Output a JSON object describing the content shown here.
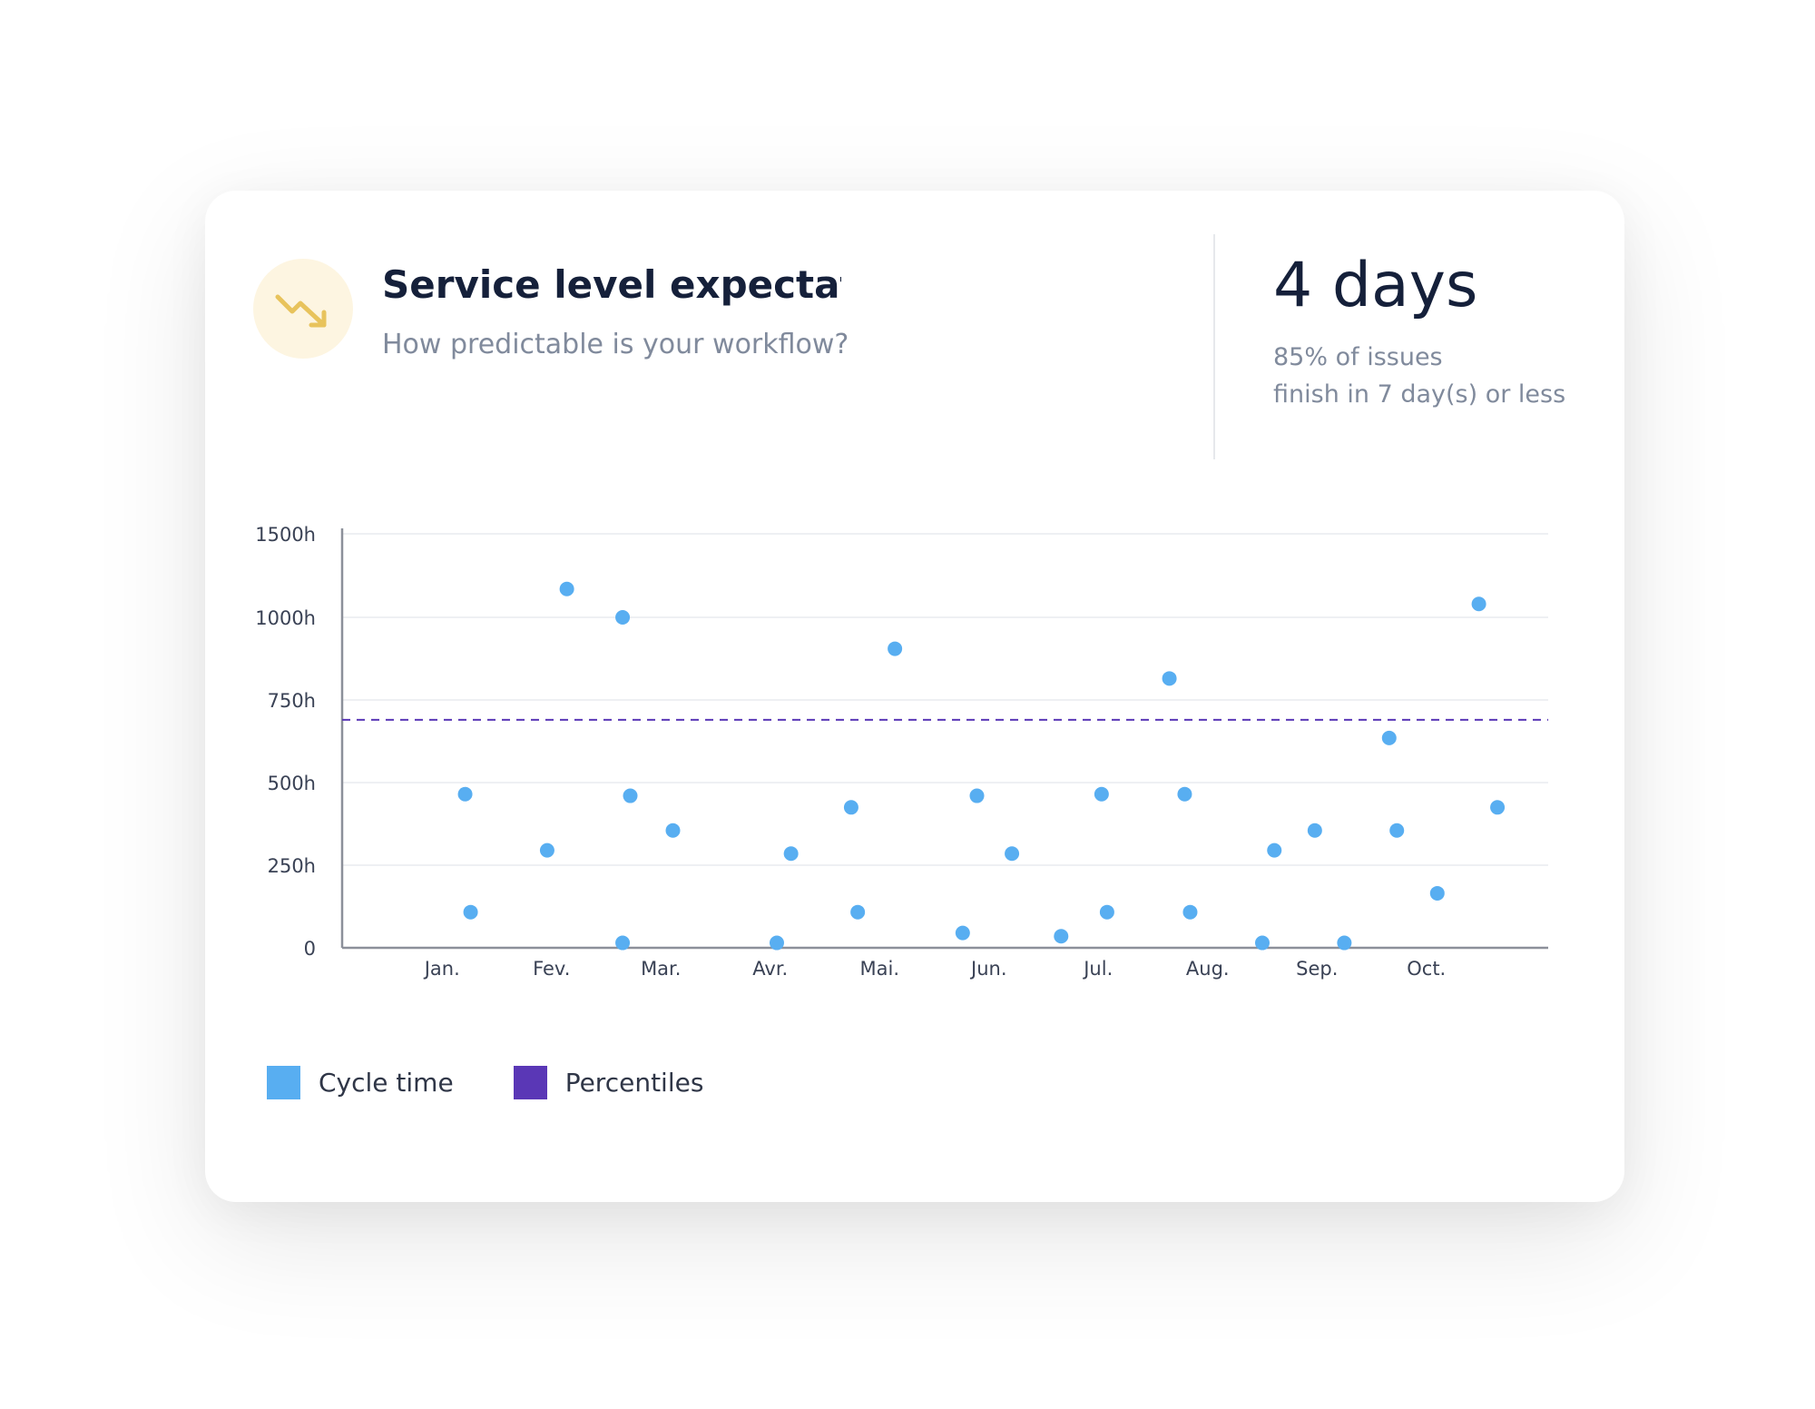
{
  "header": {
    "title": "Service level expectation",
    "subtitle": "How predictable is your workflow?",
    "icon": "trending-down-icon"
  },
  "kpi": {
    "value": "4 days",
    "line1": "85% of issues",
    "line2": "finish in 7 day(s) or less"
  },
  "colors": {
    "cycle_time": "#58aef1",
    "percentiles": "#5a37b6",
    "icon": "#e8c35c",
    "icon_bg": "#fdf5e1"
  },
  "legend": [
    {
      "label": "Cycle time",
      "color": "#58aef1"
    },
    {
      "label": "Percentiles",
      "color": "#5a37b6"
    }
  ],
  "chart_data": {
    "type": "scatter",
    "title": "",
    "xlabel": "",
    "ylabel": "",
    "yunit": "h",
    "ylim": [
      0,
      1500
    ],
    "yticks": [
      0,
      250,
      500,
      750,
      1000,
      1500
    ],
    "ytick_labels": [
      "0",
      "250h",
      "500h",
      "750h",
      "1000h",
      "1500h"
    ],
    "grid": true,
    "categories": [
      "Jan.",
      "Fev.",
      "Mar.",
      "Avr.",
      "Mai.",
      "Jun.",
      "Jul.",
      "Aug.",
      "Sep.",
      "Oct."
    ],
    "series": [
      {
        "name": "Cycle time",
        "points": [
          [
            0.71,
            465
          ],
          [
            0.76,
            108
          ],
          [
            1.46,
            295
          ],
          [
            1.64,
            1170
          ],
          [
            2.15,
            1000
          ],
          [
            2.15,
            15
          ],
          [
            2.22,
            460
          ],
          [
            2.61,
            355
          ],
          [
            3.56,
            15
          ],
          [
            3.69,
            285
          ],
          [
            4.24,
            425
          ],
          [
            4.3,
            108
          ],
          [
            4.64,
            905
          ],
          [
            5.26,
            45
          ],
          [
            5.39,
            460
          ],
          [
            5.71,
            285
          ],
          [
            6.16,
            35
          ],
          [
            6.53,
            465
          ],
          [
            6.58,
            108
          ],
          [
            7.15,
            815
          ],
          [
            7.29,
            465
          ],
          [
            7.34,
            108
          ],
          [
            8.0,
            15
          ],
          [
            8.11,
            295
          ],
          [
            8.48,
            355
          ],
          [
            8.75,
            15
          ],
          [
            9.16,
            635
          ],
          [
            9.23,
            355
          ],
          [
            9.6,
            165
          ],
          [
            9.98,
            1080
          ],
          [
            10.15,
            425
          ]
        ]
      },
      {
        "name": "Percentiles",
        "type": "line",
        "dashed": true,
        "value": 690
      }
    ]
  }
}
